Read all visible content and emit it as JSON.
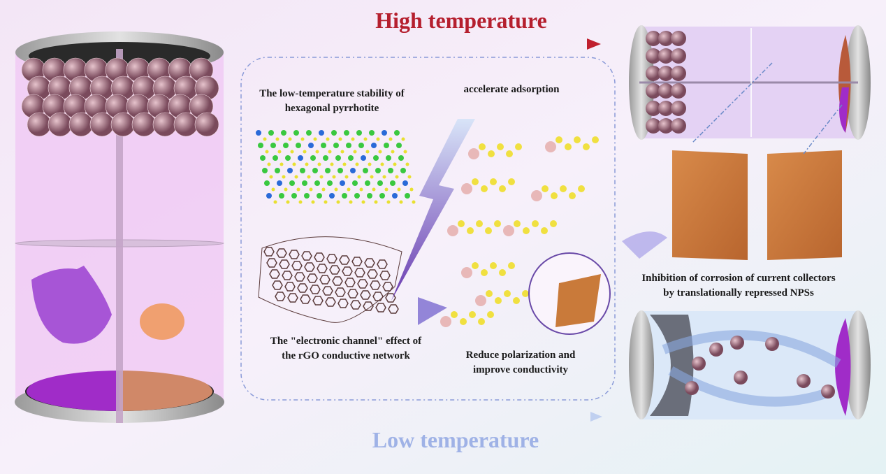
{
  "header": {
    "high": "High temperature",
    "low": "Low temperature"
  },
  "labels": {
    "pyrrhotite": [
      "The low-temperature stability of",
      "hexagonal pyrrhotite"
    ],
    "adsorption": [
      "accelerate adsorption"
    ],
    "channel": [
      "The \"electronic channel\" effect of",
      "the rGO conductive network"
    ],
    "polarization": [
      "Reduce polarization and",
      "improve conductivity"
    ],
    "corrosion": [
      "Inhibition of corrosion of current collectors",
      "by translationally repressed NPSs"
    ]
  }
}
